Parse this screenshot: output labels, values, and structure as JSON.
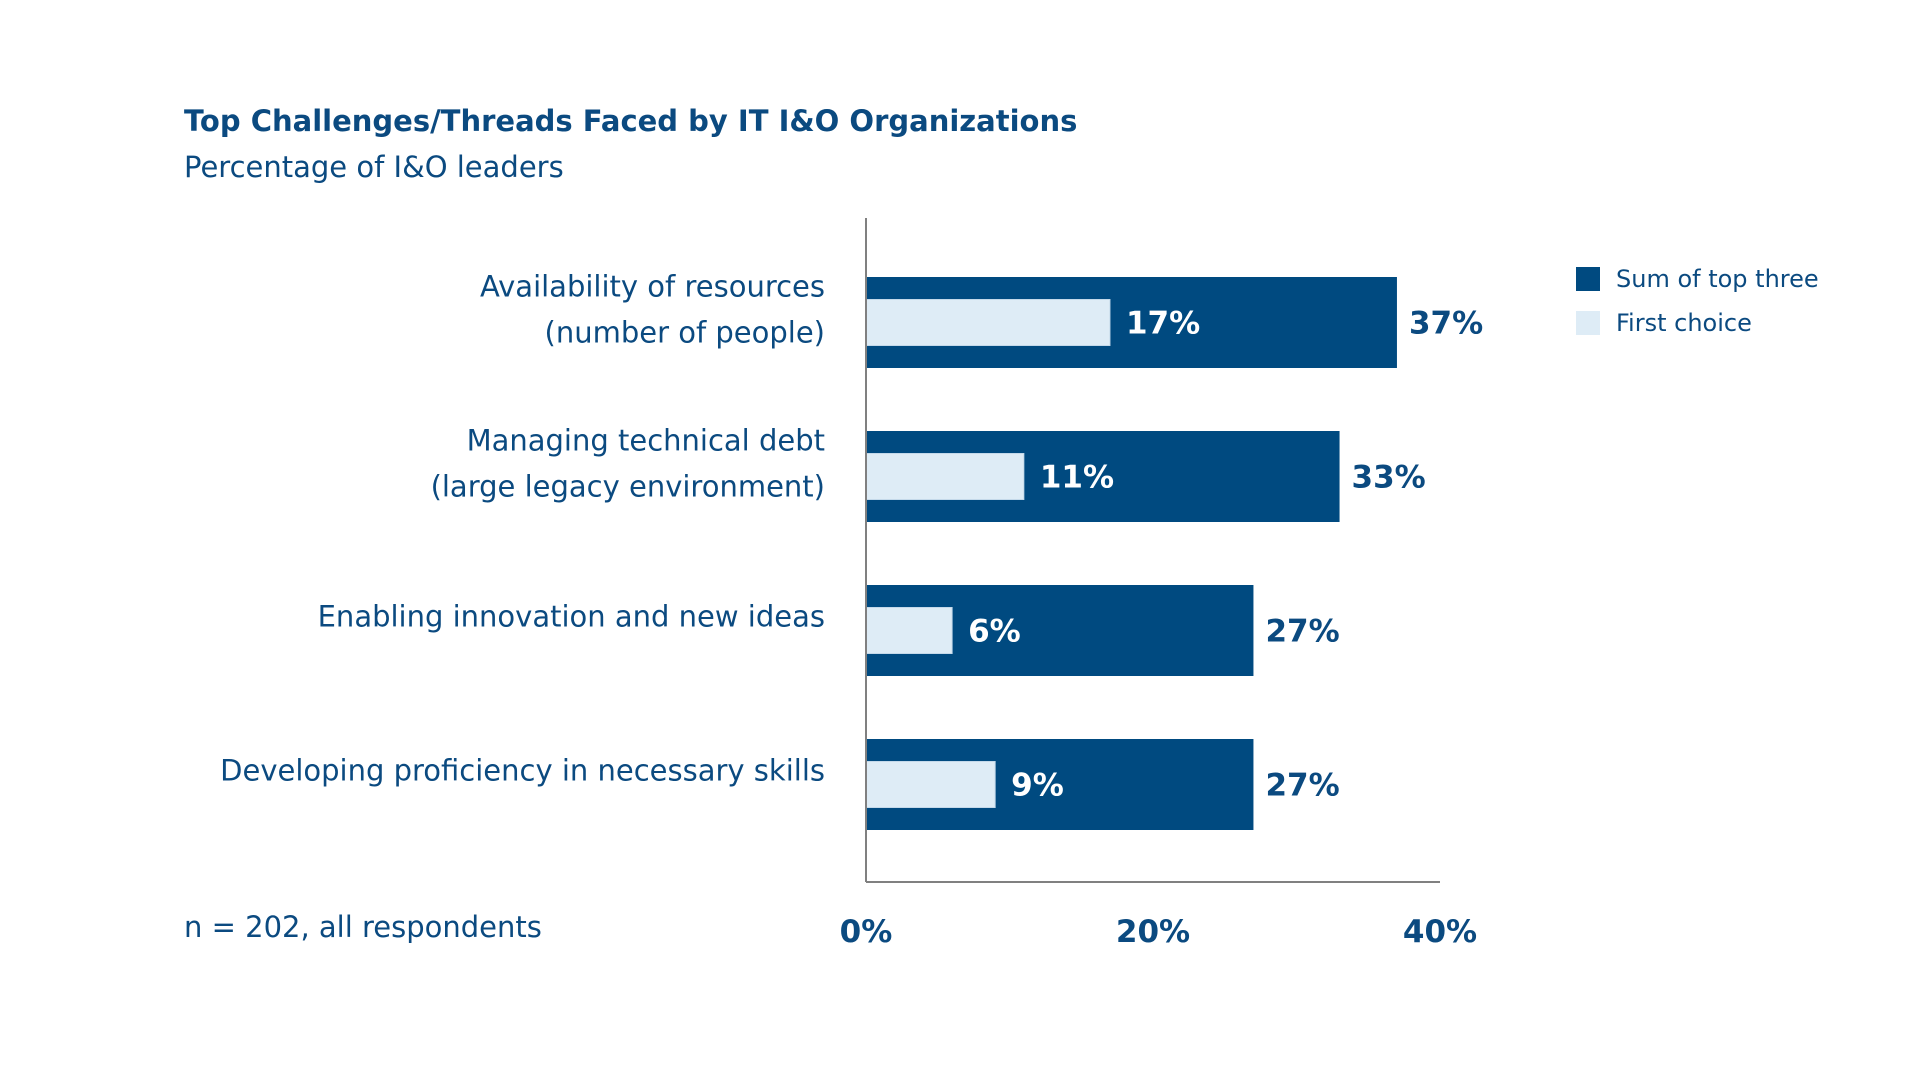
{
  "colors": {
    "dark": "#004a80",
    "light": "#deecf6",
    "axis": "#808080",
    "text": "#0b4a80"
  },
  "footnote": "n = 202, all respondents",
  "chart_data": {
    "type": "bar",
    "orientation": "horizontal",
    "title": "Top Challenges/Threads Faced by IT I&O Organizations",
    "subtitle": "Percentage of I&O leaders",
    "xlabel": "",
    "ylabel": "",
    "xlim": [
      0,
      40
    ],
    "ticks": [
      0,
      20,
      40
    ],
    "tick_labels": [
      "0%",
      "20%",
      "40%"
    ],
    "grid": false,
    "legend_position": "top-right",
    "categories": [
      [
        "Availability of resources",
        "(number of people)"
      ],
      [
        "Managing technical debt",
        "(large legacy environment)"
      ],
      [
        "Enabling innovation and new ideas"
      ],
      [
        "Developing proficiency in necessary skills"
      ]
    ],
    "series": [
      {
        "name": "Sum of top three",
        "values": [
          37,
          33,
          27,
          27
        ],
        "labels": [
          "37%",
          "33%",
          "27%",
          "27%"
        ]
      },
      {
        "name": "First choice",
        "values": [
          17,
          11,
          6,
          9
        ],
        "labels": [
          "17%",
          "11%",
          "6%",
          "9%"
        ]
      }
    ]
  }
}
